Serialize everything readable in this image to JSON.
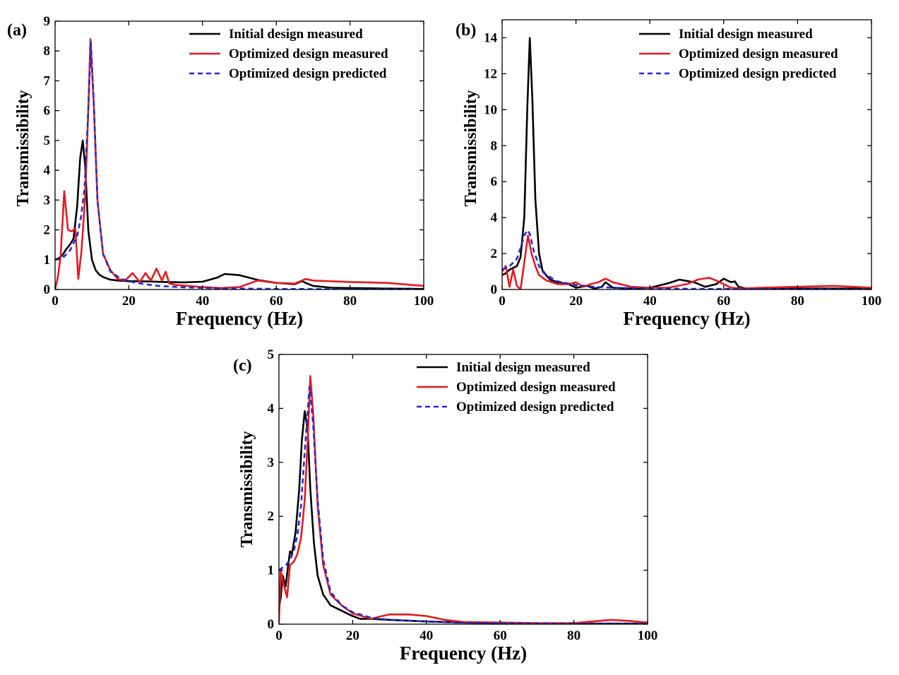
{
  "colors": {
    "initial_measured": "#000000",
    "optimized_measured": "#e8191e",
    "optimized_predicted": "#1f2ad9"
  },
  "chart_data": [
    {
      "panel_label": "(a)",
      "type": "line",
      "xlabel": "Frequency (Hz)",
      "ylabel": "Transmissibility",
      "xlim": [
        0,
        100
      ],
      "ylim": [
        0,
        9
      ],
      "xticks": [
        "0",
        "20",
        "40",
        "60",
        "80",
        "100"
      ],
      "yticks": [
        "0",
        "1",
        "2",
        "3",
        "4",
        "5",
        "6",
        "7",
        "8",
        "9"
      ],
      "legend_position": "top-right",
      "series": [
        {
          "name": "Initial design measured",
          "style": "solid",
          "color": "#000000",
          "x": [
            0,
            1,
            2,
            3,
            4,
            5,
            6,
            6.8,
            7.5,
            8.2,
            9,
            10,
            11,
            12,
            13,
            15,
            17,
            20,
            25,
            30,
            35,
            40,
            44,
            46,
            50,
            55,
            60,
            65,
            67,
            68,
            70,
            75,
            80,
            90,
            100
          ],
          "y": [
            1.0,
            1.05,
            1.15,
            1.35,
            1.5,
            1.7,
            2.8,
            4.4,
            5.0,
            4.1,
            2.0,
            1.0,
            0.65,
            0.5,
            0.42,
            0.33,
            0.3,
            0.28,
            0.27,
            0.25,
            0.24,
            0.26,
            0.4,
            0.52,
            0.48,
            0.32,
            0.22,
            0.18,
            0.28,
            0.22,
            0.12,
            0.06,
            0.05,
            0.03,
            0.02
          ]
        },
        {
          "name": "Optimized design measured",
          "style": "solid",
          "color": "#e8191e",
          "x": [
            0,
            0.8,
            1.5,
            2.5,
            3.5,
            4.5,
            5.5,
            6.3,
            7.2,
            8.2,
            9,
            9.6,
            10.5,
            11.5,
            13,
            15,
            17,
            19,
            21,
            23,
            24.5,
            26,
            27.5,
            29,
            30,
            31,
            33,
            36,
            40,
            45,
            50,
            55,
            60,
            65,
            68,
            70,
            80,
            90,
            100
          ],
          "y": [
            0.0,
            0.45,
            1.1,
            3.3,
            2.0,
            1.95,
            2.05,
            0.35,
            1.35,
            3.2,
            6.0,
            8.4,
            6.2,
            3.0,
            1.2,
            0.65,
            0.35,
            0.3,
            0.55,
            0.25,
            0.55,
            0.3,
            0.7,
            0.3,
            0.6,
            0.2,
            0.15,
            0.12,
            0.08,
            0.05,
            0.08,
            0.3,
            0.22,
            0.2,
            0.35,
            0.3,
            0.25,
            0.22,
            0.12
          ]
        },
        {
          "name": "Optimized design predicted",
          "style": "dashed",
          "color": "#1f2ad9",
          "x": [
            0,
            2,
            4,
            6,
            7,
            8,
            9,
            9.7,
            10.5,
            11.5,
            13,
            15,
            18,
            22,
            28,
            35,
            45,
            60,
            80,
            100
          ],
          "y": [
            1.0,
            1.05,
            1.3,
            1.8,
            2.4,
            3.4,
            6.0,
            8.3,
            6.3,
            3.0,
            1.2,
            0.6,
            0.35,
            0.22,
            0.12,
            0.07,
            0.04,
            0.02,
            0.01,
            0.0
          ]
        }
      ]
    },
    {
      "panel_label": "(b)",
      "type": "line",
      "xlabel": "Frequency (Hz)",
      "ylabel": "Transmissibility",
      "xlim": [
        0,
        100
      ],
      "ylim": [
        0,
        15
      ],
      "xticks": [
        "0",
        "20",
        "40",
        "60",
        "80",
        "100"
      ],
      "yticks": [
        "0",
        "2",
        "4",
        "6",
        "8",
        "10",
        "12",
        "14"
      ],
      "legend_position": "top-right",
      "series": [
        {
          "name": "Initial design measured",
          "style": "solid",
          "color": "#000000",
          "x": [
            0,
            1,
            2,
            3,
            4,
            5,
            6,
            6.8,
            7.5,
            8.2,
            9,
            10,
            11,
            13,
            15,
            18,
            20,
            23,
            25,
            27,
            28,
            30,
            35,
            40,
            45,
            48,
            52,
            55,
            58,
            60,
            62,
            63,
            64,
            66,
            70,
            80,
            90,
            100
          ],
          "y": [
            0.8,
            0.9,
            1.1,
            1.2,
            1.3,
            1.8,
            4.0,
            10.0,
            14.0,
            10.5,
            5.0,
            2.0,
            1.0,
            0.55,
            0.4,
            0.3,
            0.1,
            0.2,
            0.05,
            0.15,
            0.4,
            0.1,
            0.05,
            0.1,
            0.35,
            0.55,
            0.4,
            0.15,
            0.3,
            0.6,
            0.4,
            0.45,
            0.15,
            0.05,
            0.05,
            0.05,
            0.05,
            0.05
          ]
        },
        {
          "name": "Optimized design measured",
          "style": "solid",
          "color": "#e8191e",
          "x": [
            0,
            1,
            2,
            3,
            4,
            5,
            6,
            7,
            8,
            9,
            10,
            12,
            15,
            18,
            20,
            22,
            24,
            26,
            28,
            30,
            35,
            40,
            45,
            50,
            53,
            56,
            58,
            60,
            62,
            65,
            70,
            80,
            90,
            95,
            100
          ],
          "y": [
            1.0,
            1.3,
            0.15,
            1.1,
            0.2,
            0.0,
            1.5,
            3.0,
            2.0,
            1.3,
            0.8,
            0.5,
            0.3,
            0.3,
            0.4,
            0.15,
            0.3,
            0.4,
            0.6,
            0.4,
            0.15,
            0.1,
            0.1,
            0.3,
            0.55,
            0.65,
            0.5,
            0.3,
            0.1,
            0.05,
            0.1,
            0.15,
            0.2,
            0.15,
            0.1
          ]
        },
        {
          "name": "Optimized design predicted",
          "style": "dashed",
          "color": "#1f2ad9",
          "x": [
            0,
            2,
            4,
            5,
            6,
            6.8,
            7.5,
            8.5,
            10,
            12,
            15,
            20,
            25,
            30,
            40,
            50,
            60,
            80,
            100
          ],
          "y": [
            1.1,
            1.3,
            1.7,
            2.3,
            3.0,
            3.3,
            3.1,
            2.2,
            1.3,
            0.8,
            0.45,
            0.25,
            0.15,
            0.1,
            0.06,
            0.04,
            0.03,
            0.02,
            0.01
          ]
        }
      ]
    },
    {
      "panel_label": "(c)",
      "type": "line",
      "xlabel": "Frequency (Hz)",
      "ylabel": "Transmissibility",
      "xlim": [
        0,
        100
      ],
      "ylim": [
        0,
        5
      ],
      "xticks": [
        "0",
        "20",
        "40",
        "60",
        "80",
        "100"
      ],
      "yticks": [
        "0",
        "1",
        "2",
        "3",
        "4",
        "5"
      ],
      "legend_position": "top-right",
      "series": [
        {
          "name": "Initial design measured",
          "style": "solid",
          "color": "#000000",
          "x": [
            0,
            0.5,
            1,
            1.8,
            2.5,
            3,
            3.5,
            4.5,
            5.5,
            6.2,
            7,
            7.8,
            8.5,
            9.5,
            10.5,
            12,
            14,
            17,
            19,
            20,
            22,
            25,
            30,
            40,
            50,
            60,
            80,
            100
          ],
          "y": [
            0.3,
            0.5,
            0.9,
            0.7,
            1.1,
            1.35,
            1.3,
            1.7,
            2.5,
            3.4,
            3.95,
            3.6,
            2.5,
            1.5,
            0.9,
            0.55,
            0.35,
            0.25,
            0.18,
            0.15,
            0.1,
            0.1,
            0.08,
            0.05,
            0.03,
            0.02,
            0.01,
            0.01
          ]
        },
        {
          "name": "Optimized design measured",
          "style": "solid",
          "color": "#e8191e",
          "x": [
            0,
            0.5,
            1.2,
            2.2,
            3,
            4,
            5,
            6,
            7,
            7.8,
            8.5,
            9.3,
            10.5,
            12,
            14,
            17,
            20,
            25,
            28,
            30,
            35,
            40,
            45,
            50,
            60,
            70,
            80,
            85,
            90,
            95,
            100
          ],
          "y": [
            0.05,
            1.0,
            0.75,
            0.5,
            1.1,
            1.15,
            1.3,
            1.6,
            2.3,
            3.4,
            4.6,
            3.9,
            2.2,
            1.1,
            0.55,
            0.35,
            0.2,
            0.1,
            0.15,
            0.18,
            0.18,
            0.15,
            0.08,
            0.04,
            0.03,
            0.02,
            0.02,
            0.05,
            0.08,
            0.06,
            0.03
          ]
        },
        {
          "name": "Optimized design predicted",
          "style": "dashed",
          "color": "#1f2ad9",
          "x": [
            0,
            2,
            3,
            4,
            5,
            6,
            7,
            8.3,
            9.3,
            10.5,
            12,
            14,
            17,
            20,
            25,
            30,
            40,
            50,
            60,
            80,
            100
          ],
          "y": [
            1.0,
            1.1,
            1.2,
            1.35,
            1.65,
            2.2,
            3.2,
            4.4,
            3.7,
            2.3,
            1.2,
            0.6,
            0.35,
            0.22,
            0.12,
            0.08,
            0.05,
            0.03,
            0.02,
            0.01,
            0.01
          ]
        }
      ]
    }
  ]
}
